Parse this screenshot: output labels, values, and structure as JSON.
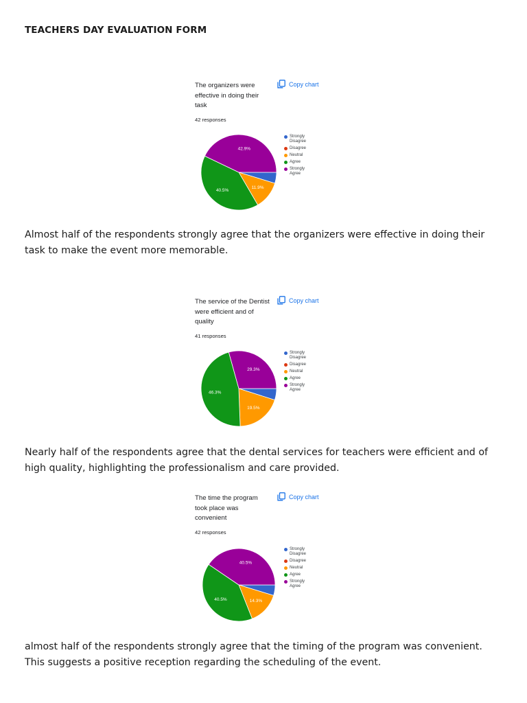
{
  "document": {
    "title": "TEACHERS DAY EVALUATION FORM"
  },
  "legend_colors": {
    "Strongly Disagree": "#3366cc",
    "Disagree": "#dc3912",
    "Neutral": "#ff9900",
    "Agree": "#109618",
    "Strongly Agree": "#990099"
  },
  "copy_chart_label": "Copy chart",
  "chart_data": [
    {
      "type": "pie",
      "title": "The organizers were effective in doing their task",
      "responses": "42 responses",
      "categories": [
        "Strongly Disagree",
        "Disagree",
        "Neutral",
        "Agree",
        "Strongly Agree"
      ],
      "values": [
        4.7,
        0,
        11.9,
        40.5,
        42.9
      ],
      "slice_labels": [
        "",
        "",
        "11.9%",
        "40.5%",
        "42.9%"
      ],
      "legend": "right"
    },
    {
      "type": "pie",
      "title": "The service of the Dentist were efficient and of quality",
      "responses": "41 responses",
      "categories": [
        "Strongly Disagree",
        "Disagree",
        "Neutral",
        "Agree",
        "Strongly Agree"
      ],
      "values": [
        4.9,
        0,
        19.5,
        46.3,
        29.3
      ],
      "slice_labels": [
        "",
        "",
        "19.5%",
        "46.3%",
        "29.3%"
      ],
      "legend": "right"
    },
    {
      "type": "pie",
      "title": "The time the program took place was convenient",
      "responses": "42 responses",
      "categories": [
        "Strongly Disagree",
        "Disagree",
        "Neutral",
        "Agree",
        "Strongly Agree"
      ],
      "values": [
        4.7,
        0,
        14.3,
        40.5,
        40.5
      ],
      "slice_labels": [
        "",
        "",
        "14.3%",
        "40.5%",
        "40.5%"
      ],
      "legend": "right"
    }
  ],
  "paragraphs": [
    "Almost half of the respondents strongly agree that the organizers were effective in doing their task to make the event more memorable.",
    "Nearly half of the respondents agree that the dental services for teachers were efficient and of high quality, highlighting the professionalism and care provided.",
    "almost half of the respondents strongly agree that the timing of the program was convenient. This suggests a positive reception regarding the scheduling of the event."
  ]
}
